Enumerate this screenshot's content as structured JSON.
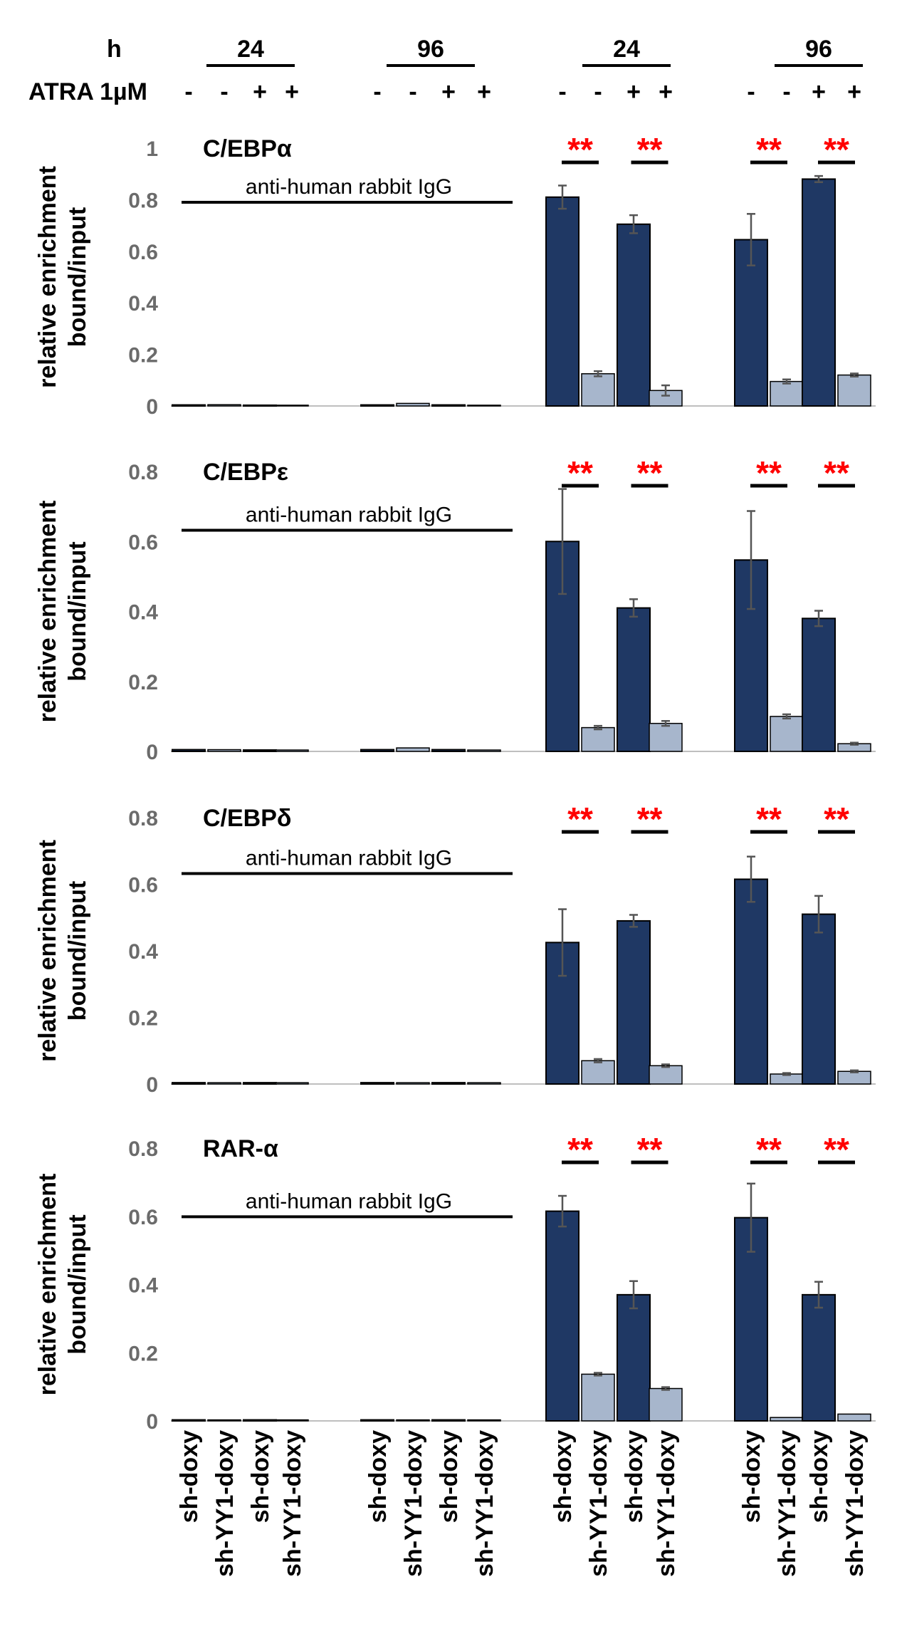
{
  "header": {
    "h_label": "h",
    "atra_label": "ATRA 1µM",
    "time_labels": [
      "24",
      "96",
      "24",
      "96"
    ],
    "atra_signs": [
      "-",
      "-",
      "+",
      "+",
      "-",
      "-",
      "+",
      "+",
      "-",
      "-",
      "+",
      "+",
      "-",
      "-",
      "+",
      "+"
    ]
  },
  "colors": {
    "dark": "#1f3864",
    "light": "#a7b6cc",
    "error": "#555555",
    "star": "#ff0000"
  },
  "chart_data": [
    {
      "type": "bar",
      "title": "C/EBPα",
      "ylabel": "relative enrichment bound/input",
      "ylim": [
        0,
        1
      ],
      "yticks": [
        "0",
        "0.2",
        "0.4",
        "0.6",
        "0.8",
        "1"
      ],
      "annotation": "anti-human rabbit IgG",
      "significance": [
        "**",
        "**",
        "**",
        "**"
      ],
      "values": [
        0.004,
        0.005,
        0.003,
        0.003,
        0.004,
        0.01,
        0.004,
        0.003,
        0.81,
        0.125,
        0.705,
        0.06,
        0.645,
        0.095,
        0.88,
        0.12
      ],
      "errors": [
        0.002,
        0.002,
        0.001,
        0.001,
        0.001,
        0.002,
        0.002,
        0.001,
        0.045,
        0.01,
        0.035,
        0.02,
        0.1,
        0.008,
        0.012,
        0.006
      ]
    },
    {
      "type": "bar",
      "title": "C/EBPε",
      "ylabel": "relative enrichment bound/input",
      "ylim": [
        0,
        0.8
      ],
      "yticks": [
        "0",
        "0.2",
        "0.4",
        "0.6",
        "0.8"
      ],
      "annotation": "anti-human rabbit IgG",
      "significance": [
        "**",
        "**",
        "**",
        "**"
      ],
      "values": [
        0.005,
        0.005,
        0.004,
        0.004,
        0.005,
        0.01,
        0.005,
        0.004,
        0.6,
        0.068,
        0.41,
        0.08,
        0.547,
        0.1,
        0.38,
        0.022
      ],
      "errors": [
        0.001,
        0.001,
        0.001,
        0.001,
        0.001,
        0.002,
        0.001,
        0.001,
        0.15,
        0.005,
        0.025,
        0.007,
        0.14,
        0.006,
        0.022,
        0.003
      ]
    },
    {
      "type": "bar",
      "title": "C/EBPδ",
      "ylabel": "relative enrichment bound/input",
      "ylim": [
        0,
        0.8
      ],
      "yticks": [
        "0",
        "0.2",
        "0.4",
        "0.6",
        "0.8"
      ],
      "annotation": "anti-human rabbit IgG",
      "significance": [
        "**",
        "**",
        "**",
        "**"
      ],
      "values": [
        0.004,
        0.004,
        0.004,
        0.004,
        0.004,
        0.004,
        0.004,
        0.004,
        0.425,
        0.07,
        0.49,
        0.055,
        0.615,
        0.03,
        0.51,
        0.038
      ],
      "errors": [
        0.001,
        0.001,
        0.001,
        0.001,
        0.001,
        0.001,
        0.001,
        0.001,
        0.1,
        0.005,
        0.018,
        0.004,
        0.068,
        0.003,
        0.055,
        0.003
      ]
    },
    {
      "type": "bar",
      "title": "RAR-α",
      "ylabel": "relative enrichment bound/input",
      "ylim": [
        0,
        0.8
      ],
      "yticks": [
        "0",
        "0.2",
        "0.4",
        "0.6",
        "0.8"
      ],
      "annotation": "anti-human rabbit IgG",
      "significance": [
        "**",
        "**",
        "**",
        "**"
      ],
      "values": [
        0.003,
        0.003,
        0.003,
        0.003,
        0.003,
        0.003,
        0.003,
        0.003,
        0.615,
        0.137,
        0.37,
        0.095,
        0.596,
        0.01,
        0.37,
        0.02
      ],
      "errors": [
        0.001,
        0.001,
        0.001,
        0.001,
        0.001,
        0.001,
        0.001,
        0.001,
        0.045,
        0.004,
        0.04,
        0.004,
        0.1,
        0.002,
        0.038,
        0.002
      ]
    }
  ],
  "x_labels": [
    "sh-doxy",
    "sh-YY1-doxy",
    "sh-doxy",
    "sh-YY1-doxy",
    "sh-doxy",
    "sh-YY1-doxy",
    "sh-doxy",
    "sh-YY1-doxy",
    "sh-doxy",
    "sh-YY1-doxy",
    "sh-doxy",
    "sh-YY1-doxy",
    "sh-doxy",
    "sh-YY1-doxy",
    "sh-doxy",
    "sh-YY1-doxy"
  ]
}
